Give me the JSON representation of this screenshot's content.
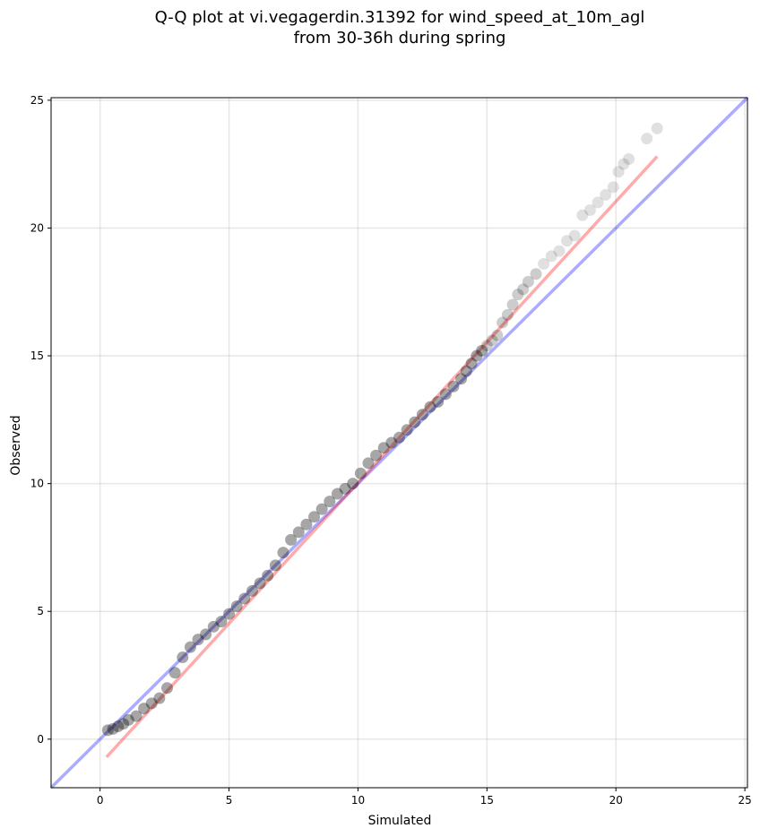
{
  "chart_data": {
    "type": "scatter",
    "title_lines": [
      "Q-Q plot at vi.vegagerdin.31392 for wind_speed_at_10m_agl",
      "from 30-36h during spring"
    ],
    "xlabel": "Simulated",
    "ylabel": "Observed",
    "xlim": [
      -1.9,
      25.1
    ],
    "ylim": [
      -1.9,
      25.1
    ],
    "xticks": [
      0,
      5,
      10,
      15,
      20,
      25
    ],
    "yticks": [
      0,
      5,
      10,
      15,
      20,
      25
    ],
    "grid": true,
    "series": [
      {
        "kind": "quantile_points",
        "color": "#000000",
        "x": [
          0.3,
          0.5,
          0.7,
          0.9,
          1.1,
          1.4,
          1.7,
          2.0,
          2.3,
          2.6,
          2.9,
          3.2,
          3.5,
          3.8,
          4.1,
          4.4,
          4.7,
          5.0,
          5.3,
          5.6,
          5.9,
          6.2,
          6.5,
          6.8,
          7.1,
          7.4,
          7.7,
          8.0,
          8.3,
          8.6,
          8.9,
          9.2,
          9.5,
          9.8,
          10.1,
          10.4,
          10.7,
          11.0,
          11.3,
          11.6,
          11.9,
          12.2,
          12.5,
          12.8,
          13.1,
          13.4,
          13.7,
          14.0,
          14.2,
          14.4,
          14.6,
          14.8,
          15.0,
          15.2,
          15.4,
          15.6,
          15.8,
          16.0,
          16.2,
          16.4,
          16.6,
          16.9,
          17.2,
          17.5,
          17.8,
          18.1,
          18.4,
          18.7,
          19.0,
          19.3,
          19.6,
          19.9,
          20.1,
          20.3,
          20.5,
          21.2,
          21.6
        ],
        "y": [
          0.35,
          0.4,
          0.5,
          0.6,
          0.75,
          0.9,
          1.2,
          1.4,
          1.6,
          2.0,
          2.6,
          3.2,
          3.6,
          3.9,
          4.1,
          4.4,
          4.6,
          4.9,
          5.2,
          5.5,
          5.8,
          6.1,
          6.4,
          6.8,
          7.3,
          7.8,
          8.1,
          8.4,
          8.7,
          9.0,
          9.3,
          9.6,
          9.8,
          10.0,
          10.4,
          10.8,
          11.1,
          11.4,
          11.6,
          11.8,
          12.1,
          12.4,
          12.7,
          13.0,
          13.2,
          13.5,
          13.8,
          14.1,
          14.4,
          14.7,
          15.0,
          15.2,
          15.4,
          15.6,
          15.8,
          16.3,
          16.6,
          17.0,
          17.4,
          17.6,
          17.9,
          18.2,
          18.6,
          18.9,
          19.1,
          19.5,
          19.7,
          20.5,
          20.7,
          21.0,
          21.3,
          21.6,
          22.2,
          22.5,
          22.7,
          23.5,
          23.9
        ]
      },
      {
        "kind": "fit_line",
        "color": "#ff0000",
        "x": [
          0.25,
          21.6
        ],
        "y": [
          -0.7,
          22.8
        ]
      },
      {
        "kind": "reference_line",
        "color": "#0000ff",
        "x": [
          -1.9,
          25.1
        ],
        "y": [
          -1.9,
          25.1
        ]
      }
    ]
  }
}
